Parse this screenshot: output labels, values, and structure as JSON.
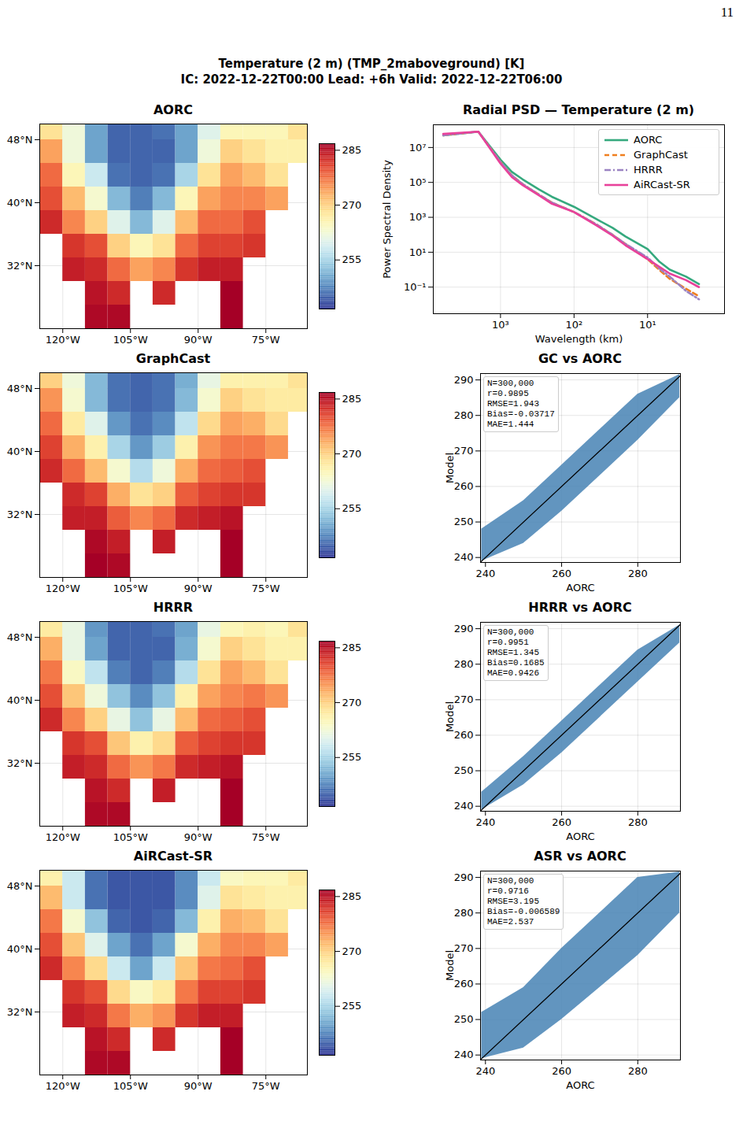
{
  "page_number": "11",
  "title": "Temperature (2 m) (TMP_2maboveground) [K]",
  "subtitle": "IC: 2022-12-22T00:00  Lead: +6h  Valid: 2022-12-22T06:00",
  "chart_data": [
    {
      "type": "heatmap",
      "title": "AORC",
      "x": [
        -122.5,
        -117.5,
        -112.5,
        -107.5,
        -102.5,
        -97.5,
        -92.5,
        -87.5,
        -82.5,
        -77.5,
        -72.5,
        -67.5
      ],
      "y": [
        49.5,
        46.5,
        43.5,
        40.5,
        37.5,
        34.5,
        31.5,
        28.5,
        25.5
      ],
      "values": [
        [
          268,
          262,
          250,
          245,
          245,
          246,
          250,
          260,
          265,
          265,
          265,
          268
        ],
        [
          274,
          262,
          250,
          245,
          245,
          245,
          250,
          262,
          270,
          268,
          266,
          266
        ],
        [
          278,
          265,
          258,
          246,
          245,
          246,
          255,
          268,
          274,
          272,
          268,
          null
        ],
        [
          280,
          272,
          263,
          252,
          247,
          252,
          265,
          274,
          276,
          276,
          274,
          null
        ],
        [
          283,
          276,
          270,
          260,
          252,
          260,
          272,
          278,
          278,
          280,
          null,
          null
        ],
        [
          null,
          282,
          280,
          270,
          265,
          268,
          278,
          281,
          281,
          282,
          null,
          null
        ],
        [
          null,
          284,
          283,
          278,
          274,
          276,
          282,
          284,
          284,
          null,
          null,
          null
        ],
        [
          null,
          null,
          285,
          283,
          null,
          283,
          null,
          null,
          287,
          null,
          null,
          null
        ],
        [
          null,
          null,
          286,
          286,
          null,
          null,
          null,
          null,
          290,
          null,
          null,
          null
        ]
      ],
      "xlim": [
        -125.1,
        -65.8
      ],
      "ylim": [
        24,
        50
      ],
      "xticks": [
        {
          "value": -120,
          "label": "120°W"
        },
        {
          "value": -105,
          "label": "105°W"
        },
        {
          "value": -90,
          "label": "90°W"
        },
        {
          "value": -75,
          "label": "75°W"
        }
      ],
      "yticks": [
        {
          "value": 32,
          "label": "32°N"
        },
        {
          "value": 40,
          "label": "40°N"
        },
        {
          "value": 48,
          "label": "48°N"
        }
      ],
      "grid": true,
      "colorbar": {
        "range": [
          241.6,
          286.8
        ],
        "ticks": [
          255,
          270,
          285
        ]
      }
    },
    {
      "type": "heatmap",
      "title": "GraphCast",
      "x": [
        -122.5,
        -117.5,
        -112.5,
        -107.5,
        -102.5,
        -97.5,
        -92.5,
        -87.5,
        -82.5,
        -77.5,
        -72.5,
        -67.5
      ],
      "y": [
        49.5,
        46.5,
        43.5,
        40.5,
        37.5,
        34.5,
        31.5,
        28.5,
        25.5
      ],
      "values": [
        [
          270,
          262,
          252,
          246,
          245,
          246,
          251,
          261,
          266,
          266,
          266,
          268
        ],
        [
          275,
          263,
          252,
          246,
          245,
          246,
          252,
          263,
          270,
          268,
          267,
          267
        ],
        [
          278,
          267,
          260,
          249,
          246,
          248,
          257,
          269,
          274,
          273,
          269,
          null
        ],
        [
          281,
          273,
          266,
          255,
          249,
          254,
          266,
          275,
          277,
          277,
          275,
          null
        ],
        [
          283,
          278,
          272,
          263,
          256,
          262,
          273,
          278,
          279,
          280,
          null,
          null
        ],
        [
          null,
          283,
          281,
          273,
          268,
          270,
          279,
          281,
          282,
          282,
          null,
          null
        ],
        [
          null,
          284,
          284,
          279,
          276,
          278,
          283,
          284,
          285,
          null,
          null,
          null
        ],
        [
          null,
          null,
          286,
          284,
          null,
          284,
          null,
          null,
          287,
          null,
          null,
          null
        ],
        [
          null,
          null,
          287,
          286,
          null,
          null,
          null,
          null,
          290,
          null,
          null,
          null
        ]
      ],
      "xlim": [
        -125.1,
        -65.8
      ],
      "ylim": [
        24,
        50
      ],
      "xticks": [
        {
          "value": -120,
          "label": "120°W"
        },
        {
          "value": -105,
          "label": "105°W"
        },
        {
          "value": -90,
          "label": "90°W"
        },
        {
          "value": -75,
          "label": "75°W"
        }
      ],
      "yticks": [
        {
          "value": 32,
          "label": "32°N"
        },
        {
          "value": 40,
          "label": "40°N"
        },
        {
          "value": 48,
          "label": "48°N"
        }
      ],
      "grid": true,
      "colorbar": {
        "range": [
          241.6,
          286.8
        ],
        "ticks": [
          255,
          270,
          285
        ]
      }
    },
    {
      "type": "heatmap",
      "title": "HRRR",
      "x": [
        -122.5,
        -117.5,
        -112.5,
        -107.5,
        -102.5,
        -97.5,
        -92.5,
        -87.5,
        -82.5,
        -77.5,
        -72.5,
        -67.5
      ],
      "y": [
        49.5,
        46.5,
        43.5,
        40.5,
        37.5,
        34.5,
        31.5,
        28.5,
        25.5
      ],
      "values": [
        [
          267,
          261,
          249,
          245,
          245,
          246,
          250,
          261,
          265,
          266,
          265,
          268
        ],
        [
          273,
          261,
          250,
          245,
          245,
          245,
          251,
          263,
          270,
          268,
          266,
          266
        ],
        [
          277,
          264,
          257,
          247,
          245,
          247,
          256,
          268,
          274,
          272,
          268,
          null
        ],
        [
          280,
          271,
          262,
          253,
          248,
          253,
          266,
          274,
          276,
          277,
          275,
          null
        ],
        [
          283,
          276,
          270,
          261,
          253,
          261,
          272,
          278,
          279,
          280,
          null,
          null
        ],
        [
          null,
          282,
          280,
          271,
          266,
          269,
          279,
          281,
          282,
          282,
          null,
          null
        ],
        [
          null,
          284,
          283,
          278,
          275,
          277,
          283,
          284,
          285,
          null,
          null,
          null
        ],
        [
          null,
          null,
          285,
          283,
          null,
          284,
          null,
          null,
          287,
          null,
          null,
          null
        ],
        [
          null,
          null,
          286,
          286,
          null,
          null,
          null,
          null,
          290,
          null,
          null,
          null
        ]
      ],
      "xlim": [
        -125.1,
        -65.8
      ],
      "ylim": [
        24,
        50
      ],
      "xticks": [
        {
          "value": -120,
          "label": "120°W"
        },
        {
          "value": -105,
          "label": "105°W"
        },
        {
          "value": -90,
          "label": "90°W"
        },
        {
          "value": -75,
          "label": "75°W"
        }
      ],
      "yticks": [
        {
          "value": 32,
          "label": "32°N"
        },
        {
          "value": 40,
          "label": "40°N"
        },
        {
          "value": 48,
          "label": "48°N"
        }
      ],
      "grid": true,
      "colorbar": {
        "range": [
          241.6,
          286.8
        ],
        "ticks": [
          255,
          270,
          285
        ]
      }
    },
    {
      "type": "heatmap",
      "title": "AiRCast-SR",
      "x": [
        -122.5,
        -117.5,
        -112.5,
        -107.5,
        -102.5,
        -97.5,
        -92.5,
        -87.5,
        -82.5,
        -77.5,
        -72.5,
        -67.5
      ],
      "y": [
        49.5,
        46.5,
        43.5,
        40.5,
        37.5,
        34.5,
        31.5,
        28.5,
        25.5
      ],
      "values": [
        [
          266,
          258,
          246,
          244,
          244,
          244,
          248,
          258,
          264,
          265,
          265,
          267
        ],
        [
          272,
          258,
          246,
          244,
          244,
          244,
          248,
          260,
          268,
          267,
          266,
          266
        ],
        [
          277,
          263,
          253,
          245,
          244,
          245,
          252,
          266,
          273,
          272,
          268,
          null
        ],
        [
          280,
          271,
          260,
          250,
          246,
          250,
          263,
          273,
          276,
          276,
          274,
          null
        ],
        [
          283,
          276,
          269,
          258,
          250,
          258,
          271,
          277,
          278,
          280,
          null,
          null
        ],
        [
          null,
          282,
          280,
          269,
          264,
          267,
          277,
          281,
          281,
          282,
          null,
          null
        ],
        [
          null,
          284,
          283,
          277,
          273,
          275,
          282,
          284,
          284,
          null,
          null,
          null
        ],
        [
          null,
          null,
          285,
          283,
          null,
          283,
          null,
          null,
          287,
          null,
          null,
          null
        ],
        [
          null,
          null,
          286,
          286,
          null,
          null,
          null,
          null,
          290,
          null,
          null,
          null
        ]
      ],
      "xlim": [
        -125.1,
        -65.8
      ],
      "ylim": [
        24,
        50
      ],
      "xticks": [
        {
          "value": -120,
          "label": "120°W"
        },
        {
          "value": -105,
          "label": "105°W"
        },
        {
          "value": -90,
          "label": "90°W"
        },
        {
          "value": -75,
          "label": "75°W"
        }
      ],
      "yticks": [
        {
          "value": 32,
          "label": "32°N"
        },
        {
          "value": 40,
          "label": "40°N"
        },
        {
          "value": 48,
          "label": "48°N"
        }
      ],
      "grid": true,
      "colorbar": {
        "range": [
          241.6,
          286.8
        ],
        "ticks": [
          255,
          270,
          285
        ]
      }
    },
    {
      "type": "line",
      "title": "Radial PSD — Temperature (2 m)",
      "x_label": "Wavelength (km)",
      "y_label": "Power Spectral Density",
      "log": true,
      "grid": true,
      "legend": "upper right",
      "x": [
        6000,
        2000,
        1000,
        700,
        500,
        300,
        200,
        100,
        50,
        30,
        20,
        10,
        7,
        5,
        3,
        2
      ],
      "series": [
        {
          "name": "AORC",
          "color": "#35a97e",
          "line_style": "solid",
          "values": [
            50000000,
            80000000,
            2000000,
            400000,
            150000,
            40000,
            15000,
            4000,
            800,
            250,
            80,
            15,
            3,
            1,
            0.4,
            0.15
          ]
        },
        {
          "name": "GraphCast",
          "color": "#f07f20",
          "line_style": "dashed",
          "values": [
            50000000,
            80000000,
            1500000,
            250000,
            80000,
            20000,
            7000,
            2000,
            400,
            100,
            30,
            4,
            1,
            0.3,
            0.08,
            0.03
          ]
        },
        {
          "name": "HRRR",
          "color": "#9b83c2",
          "line_style": "dashdot",
          "values": [
            50000000,
            80000000,
            1500000,
            250000,
            80000,
            20000,
            7000,
            2000,
            400,
            100,
            30,
            5,
            1.2,
            0.4,
            0.06,
            0.02
          ]
        },
        {
          "name": "AiRCast-SR",
          "color": "#e8419a",
          "line_style": "solid",
          "values": [
            60000000,
            80000000,
            1200000,
            200000,
            70000,
            18000,
            6000,
            2000,
            350,
            90,
            25,
            4,
            1.5,
            0.6,
            0.25,
            0.1
          ]
        }
      ],
      "xlim": [
        8200,
        0.9
      ],
      "ylim": [
        0.003,
        200000000
      ],
      "xticks": [
        {
          "value": 1000,
          "label": "10³"
        },
        {
          "value": 100,
          "label": "10²"
        },
        {
          "value": 10,
          "label": "10¹"
        }
      ],
      "yticks": [
        {
          "value": 0.1,
          "label": "10⁻¹"
        },
        {
          "value": 10,
          "label": "10¹"
        },
        {
          "value": 1000,
          "label": "10³"
        },
        {
          "value": 100000,
          "label": "10⁵"
        },
        {
          "value": 10000000,
          "label": "10⁷"
        }
      ]
    },
    {
      "type": "scatter",
      "title": "GC vs AORC",
      "x_label": "AORC",
      "y_label": "Model",
      "color": "#4682b4",
      "grid": true,
      "band": {
        "x": [
          239,
          250,
          260,
          270,
          280,
          291
        ],
        "lower": [
          239,
          244,
          253,
          263,
          273,
          285
        ],
        "upper": [
          248,
          256,
          266,
          276,
          286,
          291.5
        ]
      },
      "reference_line": {
        "x": [
          238.6,
          291.8
        ],
        "y": [
          238.6,
          291.8
        ]
      },
      "stats": [
        "N=300,000",
        "r=0.9895",
        "RMSE=1.943",
        "Bias=-0.03717",
        "MAE=1.444"
      ],
      "xlim": [
        238.7,
        291.2
      ],
      "ylim": [
        238.6,
        291.8
      ],
      "xticks": [
        240,
        260,
        280
      ],
      "yticks": [
        240,
        250,
        260,
        270,
        280,
        290
      ]
    },
    {
      "type": "scatter",
      "title": "HRRR vs AORC",
      "x_label": "AORC",
      "y_label": "Model",
      "color": "#4682b4",
      "grid": true,
      "band": {
        "x": [
          239,
          250,
          260,
          270,
          280,
          291
        ],
        "lower": [
          239,
          246,
          255,
          265,
          275,
          286
        ],
        "upper": [
          244,
          254,
          264,
          274,
          284,
          291
        ]
      },
      "reference_line": {
        "x": [
          238.6,
          291.8
        ],
        "y": [
          238.6,
          291.8
        ]
      },
      "stats": [
        "N=300,000",
        "r=0.9951",
        "RMSE=1.345",
        "Bias=0.1685",
        "MAE=0.9426"
      ],
      "xlim": [
        238.7,
        291.2
      ],
      "ylim": [
        238.6,
        291.8
      ],
      "xticks": [
        240,
        260,
        280
      ],
      "yticks": [
        240,
        250,
        260,
        270,
        280,
        290
      ]
    },
    {
      "type": "scatter",
      "title": "ASR vs AORC",
      "x_label": "AORC",
      "y_label": "Model",
      "color": "#4682b4",
      "grid": true,
      "band": {
        "x": [
          239,
          250,
          260,
          270,
          280,
          291
        ],
        "lower": [
          239,
          242,
          250,
          259,
          268,
          280
        ],
        "upper": [
          252,
          259,
          270,
          280,
          290,
          291.5
        ]
      },
      "reference_line": {
        "x": [
          238.6,
          291.8
        ],
        "y": [
          238.6,
          291.8
        ]
      },
      "stats": [
        "N=300,000",
        "r=0.9716",
        "RMSE=3.195",
        "Bias=-0.006589",
        "MAE=2.537"
      ],
      "xlim": [
        238.7,
        291.2
      ],
      "ylim": [
        238.6,
        291.8
      ],
      "xticks": [
        240,
        260,
        280
      ],
      "yticks": [
        240,
        250,
        260,
        270,
        280,
        290
      ]
    }
  ]
}
